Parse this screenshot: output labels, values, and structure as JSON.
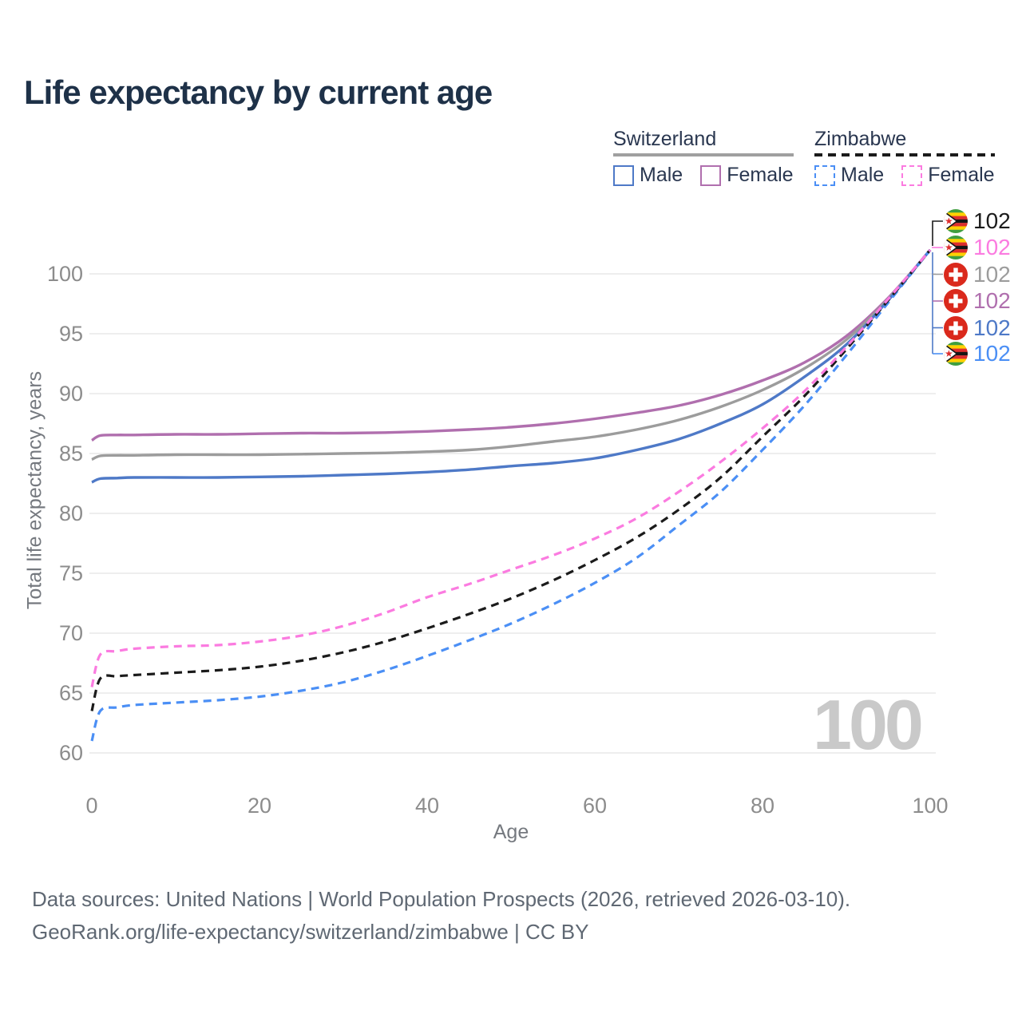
{
  "title": "Life expectancy by current age",
  "watermark": "100",
  "legend": {
    "groups": [
      {
        "label": "Switzerland",
        "style": "solid",
        "underline_color": "#a0a0a0",
        "items": [
          {
            "label": "Male",
            "color": "#4e79c7"
          },
          {
            "label": "Female",
            "color": "#b06fae"
          }
        ]
      },
      {
        "label": "Zimbabwe",
        "style": "dashed",
        "underline_color": "#1b1b1b",
        "items": [
          {
            "label": "Male",
            "color": "#4b8ff5"
          },
          {
            "label": "Female",
            "color": "#fb7be0"
          }
        ]
      }
    ]
  },
  "footer": {
    "line1": "Data sources: United Nations | World Population Prospects (2026, retrieved 2026-03-10).",
    "line2": "GeoRank.org/life-expectancy/switzerland/zimbabwe | CC BY"
  },
  "chart_data": {
    "type": "line",
    "title": "Life expectancy by current age",
    "xlabel": "Age",
    "ylabel": "Total life expectancy, years",
    "xlim": [
      0,
      100
    ],
    "ylim": [
      60,
      102
    ],
    "x_ticks": [
      0,
      20,
      40,
      60,
      80,
      100
    ],
    "y_ticks": [
      60,
      65,
      70,
      75,
      80,
      85,
      90,
      95,
      100
    ],
    "grid": "horizontal",
    "legend_position": "top-right",
    "x": [
      0,
      1,
      3,
      5,
      10,
      15,
      20,
      25,
      30,
      35,
      40,
      45,
      50,
      55,
      60,
      65,
      70,
      75,
      80,
      85,
      90,
      95,
      100
    ],
    "series": [
      {
        "name": "Switzerland Female",
        "country": "Switzerland",
        "sex": "Female",
        "style": "solid",
        "color": "#b06fae",
        "values": [
          86.1,
          86.5,
          86.55,
          86.55,
          86.6,
          86.6,
          86.65,
          86.7,
          86.7,
          86.75,
          86.85,
          87.0,
          87.2,
          87.5,
          87.9,
          88.4,
          89.0,
          89.9,
          91.1,
          92.6,
          94.8,
          98.0,
          102
        ]
      },
      {
        "name": "Switzerland Both sexes",
        "country": "Switzerland",
        "sex": "Both",
        "style": "solid",
        "color": "#9c9c9c",
        "values": [
          84.5,
          84.8,
          84.85,
          84.85,
          84.9,
          84.9,
          84.9,
          84.95,
          85.0,
          85.05,
          85.15,
          85.3,
          85.6,
          86.0,
          86.4,
          87.0,
          87.8,
          88.9,
          90.3,
          92.1,
          94.5,
          97.9,
          102
        ]
      },
      {
        "name": "Switzerland Male",
        "country": "Switzerland",
        "sex": "Male",
        "style": "solid",
        "color": "#4e79c7",
        "values": [
          82.6,
          82.9,
          82.95,
          83.0,
          83.0,
          83.0,
          83.05,
          83.1,
          83.2,
          83.3,
          83.45,
          83.65,
          83.95,
          84.2,
          84.6,
          85.3,
          86.2,
          87.5,
          89.1,
          91.4,
          94.1,
          97.8,
          102
        ]
      },
      {
        "name": "Zimbabwe Male",
        "country": "Zimbabwe",
        "sex": "Male",
        "style": "dashed",
        "color": "#4b8ff5",
        "values": [
          61.0,
          63.5,
          63.8,
          64.0,
          64.2,
          64.4,
          64.7,
          65.2,
          65.9,
          66.9,
          68.1,
          69.4,
          70.8,
          72.4,
          74.2,
          76.3,
          79.0,
          81.8,
          85.3,
          89.0,
          93.2,
          97.6,
          102
        ]
      },
      {
        "name": "Zimbabwe Both sexes",
        "country": "Zimbabwe",
        "sex": "Both",
        "style": "dashed",
        "color": "#1b1b1b",
        "values": [
          63.5,
          66.2,
          66.4,
          66.5,
          66.7,
          66.9,
          67.2,
          67.7,
          68.4,
          69.3,
          70.4,
          71.6,
          72.9,
          74.4,
          76.1,
          78.0,
          80.3,
          83.0,
          86.4,
          89.8,
          93.7,
          97.8,
          102
        ]
      },
      {
        "name": "Zimbabwe Female",
        "country": "Zimbabwe",
        "sex": "Female",
        "style": "dashed",
        "color": "#fb7be0",
        "values": [
          65.5,
          68.2,
          68.5,
          68.7,
          68.9,
          69.0,
          69.3,
          69.8,
          70.6,
          71.7,
          73.0,
          74.1,
          75.3,
          76.5,
          77.9,
          79.6,
          81.8,
          84.3,
          87.1,
          90.2,
          93.9,
          97.9,
          102
        ]
      }
    ],
    "end_labels": [
      {
        "series": "Zimbabwe Both sexes",
        "flag": "zimbabwe",
        "value": "102",
        "color": "#1b1b1b"
      },
      {
        "series": "Zimbabwe Female",
        "flag": "zimbabwe",
        "value": "102",
        "color": "#fb7be0"
      },
      {
        "series": "Switzerland Both sexes",
        "flag": "switzerland",
        "value": "102",
        "color": "#9c9c9c"
      },
      {
        "series": "Switzerland Female",
        "flag": "switzerland",
        "value": "102",
        "color": "#b06fae"
      },
      {
        "series": "Switzerland Male",
        "flag": "switzerland",
        "value": "102",
        "color": "#4e79c7"
      },
      {
        "series": "Zimbabwe Male",
        "flag": "zimbabwe",
        "value": "102",
        "color": "#4b8ff5"
      }
    ]
  }
}
